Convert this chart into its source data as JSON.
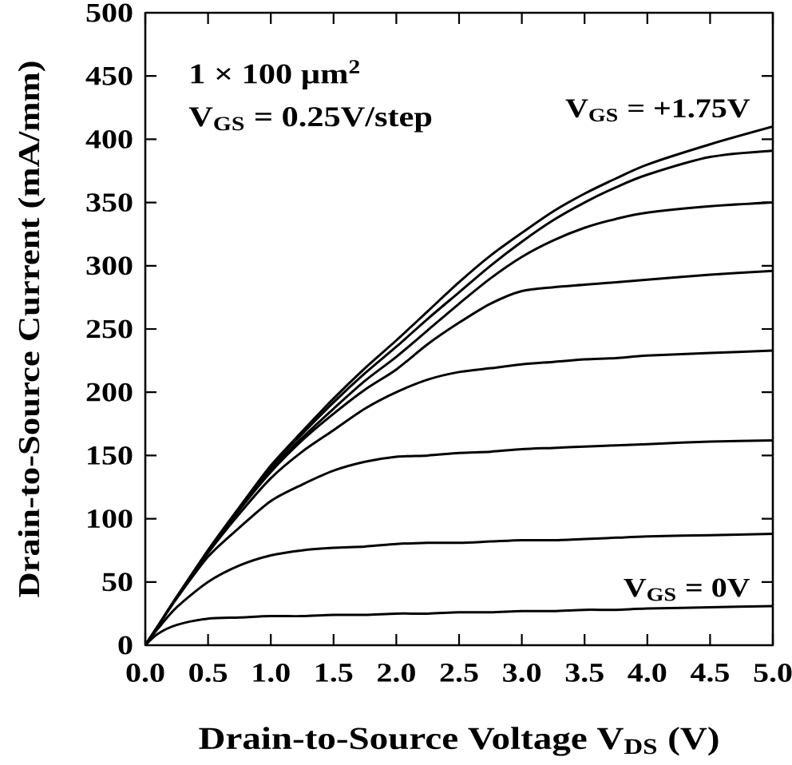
{
  "chart_data": {
    "type": "line",
    "xlabel": "Drain-to-Source Voltage V$_{DS}$ (V)",
    "ylabel": "Drain-to-Source Current (mA/mm)",
    "annotations": [
      "1 × 100 µm$^{2}$",
      "V$_{GS}$ = 0.25V/step",
      {
        "text": "V$_{GS}$ = +1.75V",
        "x": 5,
        "y": 410
      },
      {
        "text": "V$_{GS}$ = 0V",
        "x": 5,
        "y": 31
      }
    ],
    "xlim": [
      0,
      5
    ],
    "ylim": [
      0,
      500
    ],
    "xticks": [
      {
        "value": 0,
        "label": "0.0"
      },
      0.5,
      {
        "value": 1,
        "label": "1.0"
      },
      1.5,
      {
        "value": 2,
        "label": "2.0"
      },
      2.5,
      {
        "value": 3,
        "label": "3.0"
      },
      3.5,
      {
        "value": 4,
        "label": "4.0"
      },
      4.5,
      {
        "value": 5,
        "label": "5.0"
      }
    ],
    "yticks": [
      0,
      50,
      100,
      150,
      200,
      250,
      300,
      350,
      400,
      450,
      500
    ],
    "x": [
      0,
      0.1,
      0.25,
      0.5,
      0.75,
      1,
      1.25,
      1.5,
      1.75,
      2,
      2.25,
      2.5,
      2.75,
      3,
      3.25,
      3.5,
      3.75,
      4,
      4.5,
      5
    ],
    "series": [
      {
        "color": "#000000",
        "values": [
          0,
          9,
          16,
          21,
          22,
          23,
          23,
          24,
          24,
          25,
          25,
          26,
          26,
          27,
          27,
          28,
          28,
          29,
          30,
          31
        ]
      },
      {
        "color": "#000000",
        "values": [
          0,
          13,
          30,
          50,
          63,
          71,
          75,
          77,
          78,
          80,
          81,
          81,
          82,
          83,
          83,
          84,
          85,
          86,
          87,
          88
        ]
      },
      {
        "color": "#000000",
        "values": [
          0,
          15,
          37,
          70,
          93,
          114,
          127,
          138,
          145,
          149,
          150,
          152,
          153,
          155,
          156,
          157,
          158,
          159,
          161,
          162
        ]
      },
      {
        "color": "#000000",
        "values": [
          0,
          15,
          38,
          73,
          104,
          132,
          153,
          170,
          187,
          200,
          210,
          216,
          219,
          222,
          224,
          226,
          227,
          229,
          231,
          233
        ]
      },
      {
        "color": "#000000",
        "values": [
          0,
          15,
          38,
          74,
          107,
          137,
          162,
          183,
          202,
          218,
          238,
          255,
          270,
          280,
          283,
          285,
          287,
          289,
          293,
          296
        ]
      },
      {
        "color": "#000000",
        "values": [
          0,
          15,
          38,
          74,
          108,
          139,
          164,
          187,
          209,
          228,
          249,
          270,
          290,
          307,
          320,
          330,
          337,
          342,
          347,
          350
        ]
      },
      {
        "color": "#000000",
        "values": [
          0,
          15,
          38,
          75,
          109,
          141,
          167,
          192,
          215,
          236,
          258,
          279,
          300,
          319,
          336,
          350,
          362,
          372,
          386,
          391
        ]
      },
      {
        "color": "#000000",
        "values": [
          0,
          15,
          38,
          75,
          109,
          142,
          169,
          195,
          219,
          241,
          264,
          287,
          308,
          326,
          343,
          357,
          369,
          380,
          396,
          410
        ]
      }
    ]
  }
}
